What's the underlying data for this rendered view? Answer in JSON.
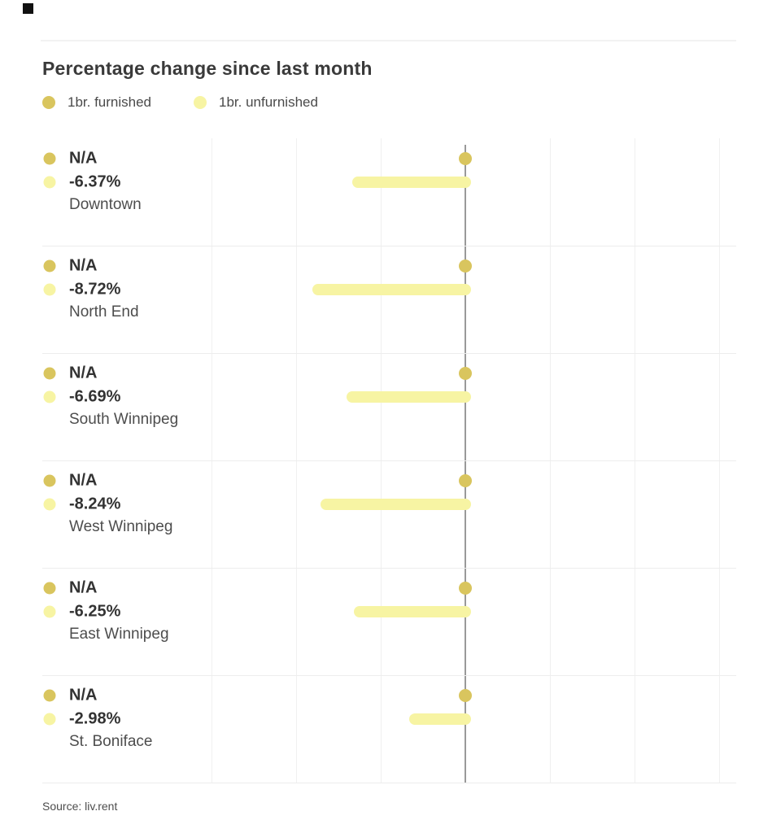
{
  "header": {
    "title": "Percentage change since last month"
  },
  "legend": {
    "items": [
      {
        "label": "1br. furnished",
        "color": "#d9c55e"
      },
      {
        "label": "1br. unfurnished",
        "color": "#f7f4a3"
      }
    ]
  },
  "chart_data": {
    "type": "bar",
    "orientation": "horizontal",
    "title": "Percentage change since last month",
    "categories": [
      "Downtown",
      "North End",
      "South Winnipeg",
      "West Winnipeg",
      "East Winnipeg",
      "St. Boniface"
    ],
    "series": [
      {
        "name": "1br. furnished",
        "color": "#d9c55e",
        "values": [
          null,
          null,
          null,
          null,
          null,
          null
        ],
        "display": [
          "N/A",
          "N/A",
          "N/A",
          "N/A",
          "N/A",
          "N/A"
        ]
      },
      {
        "name": "1br. unfurnished",
        "color": "#f7f4a3",
        "values": [
          -6.37,
          -8.72,
          -6.69,
          -8.24,
          -6.25,
          -2.98
        ],
        "display": [
          "-6.37%",
          "-8.72%",
          "-6.69%",
          "-8.24%",
          "-6.25%",
          "-2.98%"
        ]
      }
    ],
    "xlim": [
      -15,
      15
    ],
    "gridline_interval_pct": 5,
    "grid": true,
    "zero_line": true,
    "legend_position": "top"
  },
  "footer": {
    "source": "Source: liv.rent"
  }
}
